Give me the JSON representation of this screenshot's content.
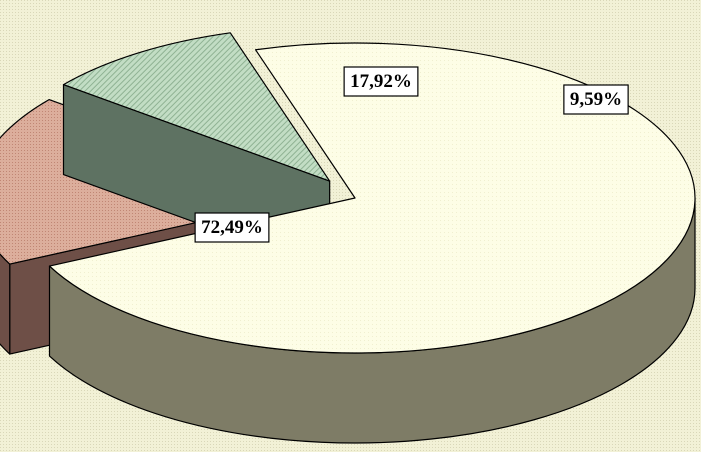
{
  "chart_data": {
    "type": "pie",
    "three_d": true,
    "exploded": true,
    "title": "",
    "legend": "none",
    "values": [
      72.49,
      17.92,
      9.59
    ],
    "labels": [
      "72,49%",
      "17,92%",
      "9,59%"
    ],
    "colors": {
      "background": "#efeed2",
      "slices": [
        "#fdfde6",
        "#d9a593",
        "#b6d6b8"
      ],
      "slice_sides": [
        "#7e7c66",
        "#6e4f47",
        "#5e7262"
      ],
      "label_box": "#ffffff",
      "outline": "#000000"
    }
  }
}
